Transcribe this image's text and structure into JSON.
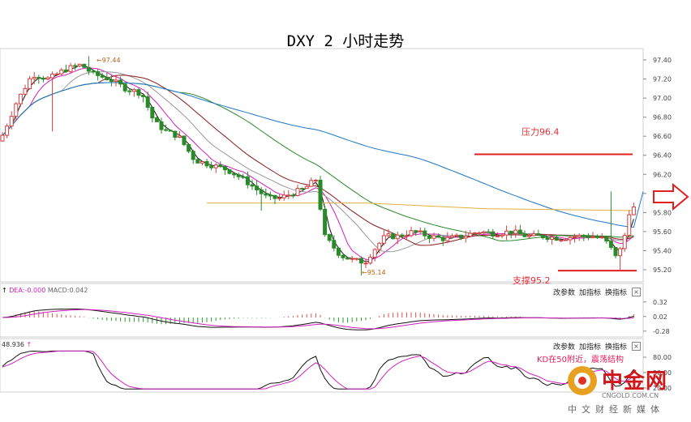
{
  "title": "DXY 2 小时走势",
  "chart_data": {
    "type": "candlestick",
    "price_axis": {
      "ticks": [
        97.4,
        97.2,
        97.0,
        96.8,
        96.6,
        96.4,
        96.2,
        96.0,
        95.8,
        95.6,
        95.4,
        95.2
      ],
      "ylim": [
        95.1,
        97.48
      ]
    },
    "high_label": "97.44",
    "low_label": "95.14",
    "resistance": {
      "label": "压力96.4",
      "value": 96.41
    },
    "support": {
      "label": "支撑95.2",
      "value": 95.19
    },
    "ma_colors": {
      "ma1": "#111111",
      "ma2": "#d020c0",
      "ma3": "#999999",
      "ma4": "#8b1a1a",
      "ma5": "#2a8a2a",
      "ma6": "#1f77c8",
      "ma7": "#e0b040"
    },
    "bull_color": "#d04040",
    "bear_color": "#2a8a2a",
    "macd": {
      "legend_dea": "DEA:-0.000",
      "legend_macd": "MACD:0.042",
      "ticks": [
        0.32,
        0.02,
        -0.28
      ]
    },
    "kd": {
      "legend": "48.936",
      "ticks": [
        80.0,
        50.0,
        20.0
      ],
      "annotation": "KD在50附近，震荡结构"
    }
  },
  "toolbar": {
    "b1": "改参数",
    "b2": "加指标",
    "b3": "换指标",
    "close": "×"
  },
  "logo": {
    "name": "中金网",
    "url": "CNGOLD.COM.CN",
    "subtitle": "中文财经新媒体"
  }
}
